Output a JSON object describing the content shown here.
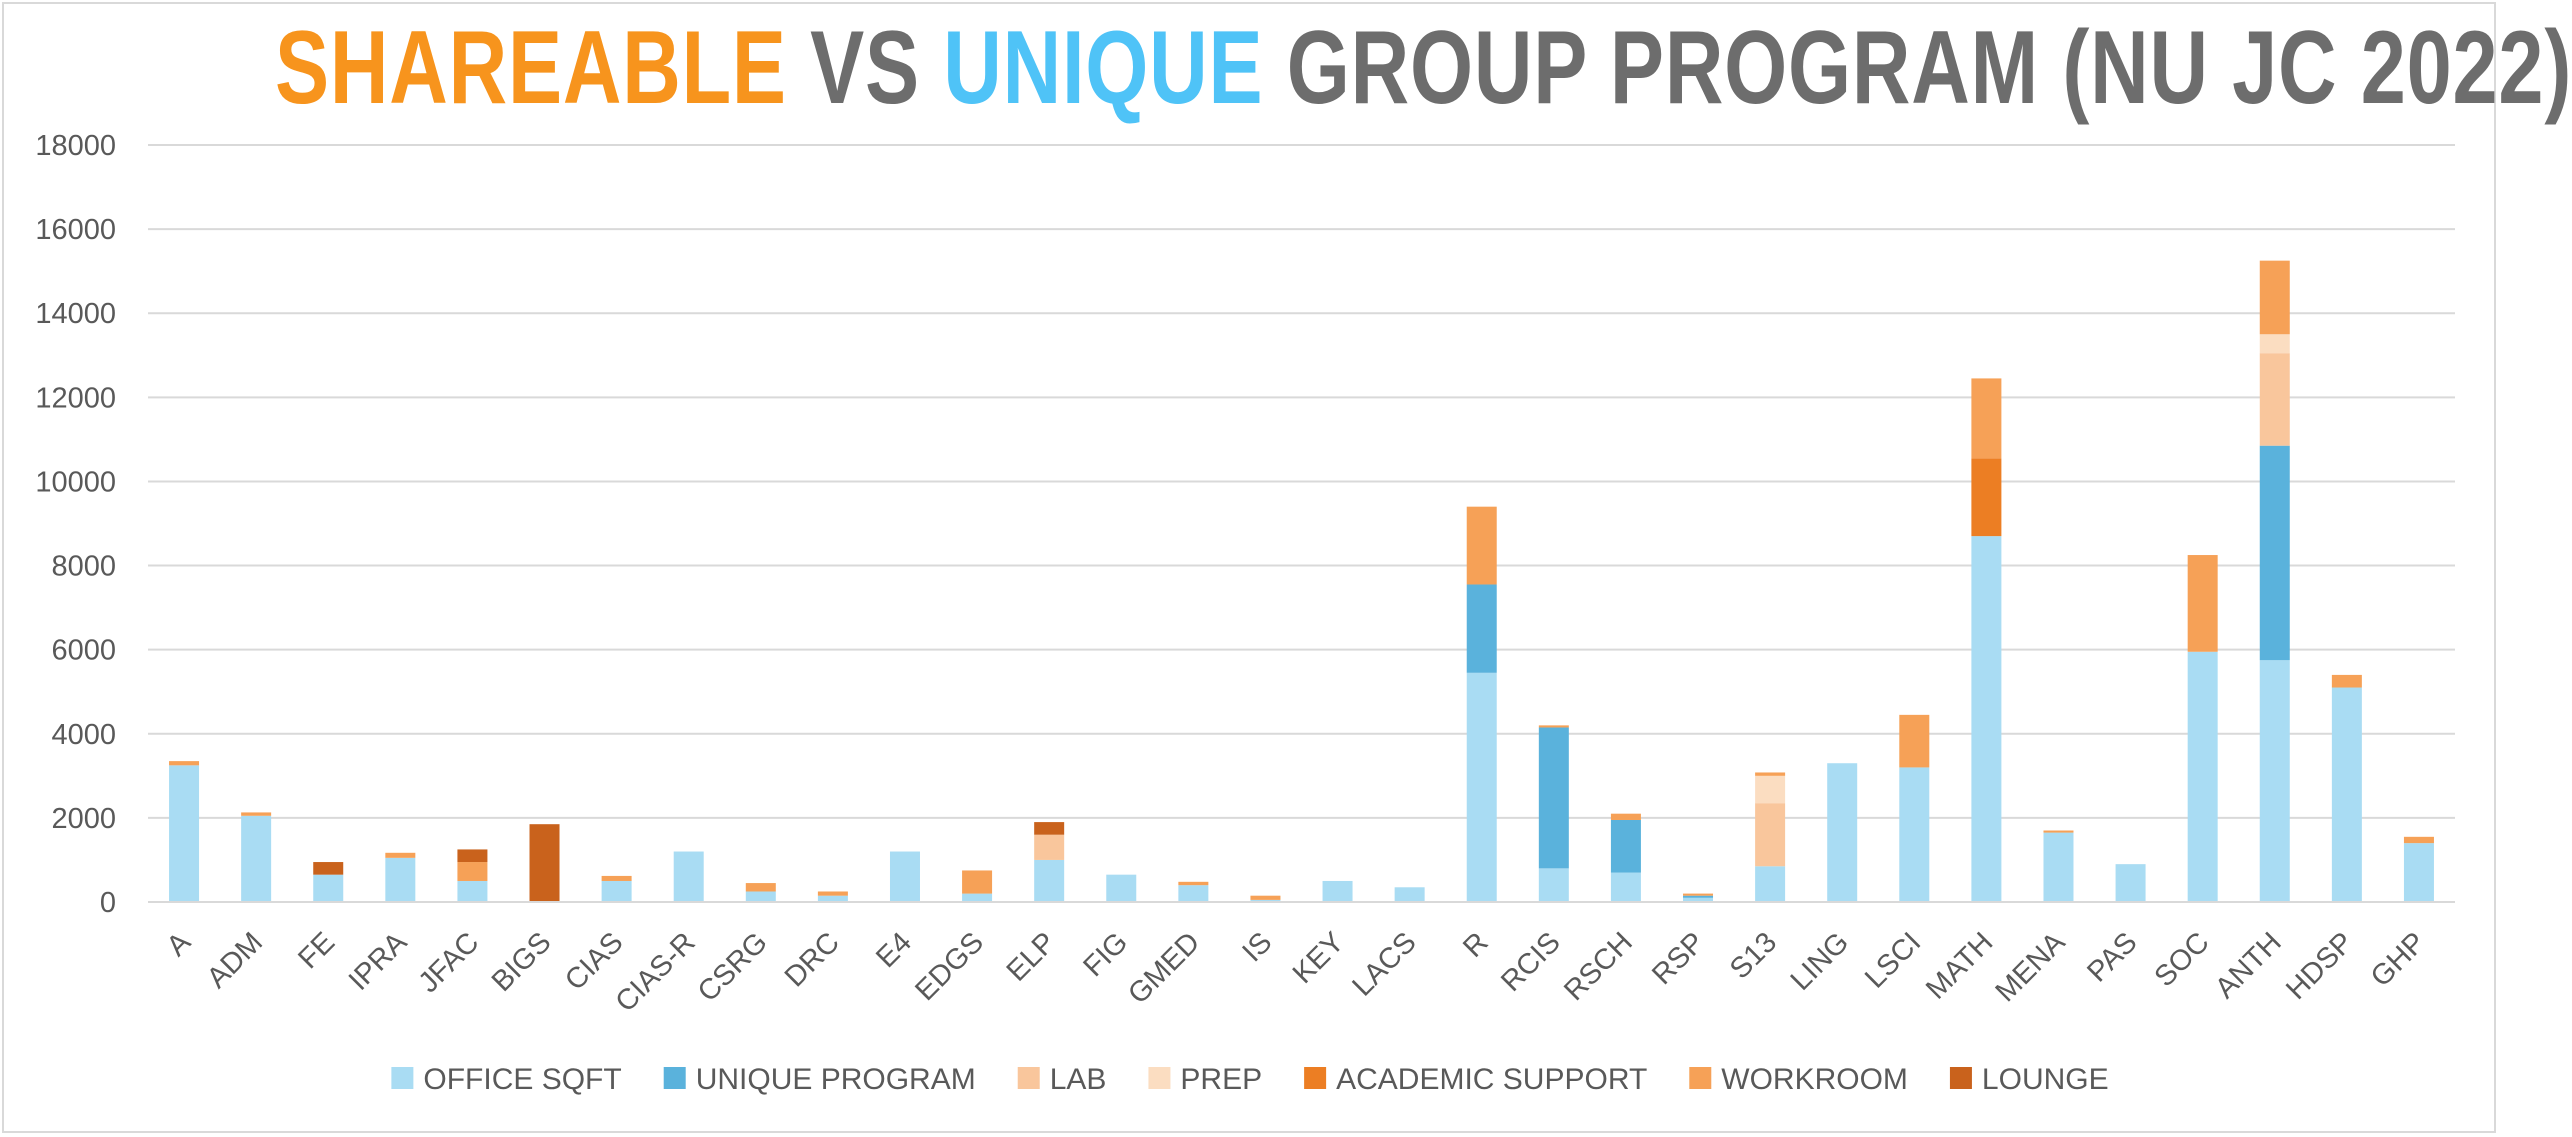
{
  "title": {
    "part1": "SHAREABLE",
    "part2": " VS ",
    "part3": "UNIQUE",
    "part4": " GROUP PROGRAM (NU JC 2022)",
    "color_shareable": "#F7941D",
    "color_unique": "#4FC3F7",
    "color_rest": "#6d6d6d"
  },
  "chart_data": {
    "type": "bar",
    "stacked": true,
    "title": "SHAREABLE VS UNIQUE GROUP PROGRAM (NU JC 2022)",
    "xlabel": "",
    "ylabel": "",
    "ylim": [
      0,
      18000
    ],
    "y_ticks": [
      0,
      2000,
      4000,
      6000,
      8000,
      10000,
      12000,
      14000,
      16000,
      18000
    ],
    "grid": true,
    "legend_position": "bottom",
    "categories": [
      "A",
      "ADM",
      "FE",
      "IPRA",
      "JFAC",
      "BIGS",
      "CIAS",
      "CIAS-R",
      "CSRG",
      "DRC",
      "E4",
      "EDGS",
      "ELP",
      "FIG",
      "GMED",
      "IS",
      "KEY",
      "LACS",
      "R",
      "RCIS",
      "RSCH",
      "RSP",
      "S13",
      "LING",
      "LSCI",
      "MATH",
      "MENA",
      "PAS",
      "SOC",
      "ANTH",
      "HDSP",
      "GHP"
    ],
    "series": [
      {
        "name": "OFFICE SQFT",
        "color": "#A9DCF3",
        "values": [
          3250,
          2050,
          650,
          1050,
          500,
          0,
          500,
          1200,
          250,
          150,
          1200,
          200,
          1000,
          650,
          400,
          50,
          500,
          350,
          5450,
          800,
          700,
          100,
          850,
          3300,
          3200,
          8700,
          1650,
          900,
          5950,
          5750,
          5100,
          1400
        ]
      },
      {
        "name": "UNIQUE PROGRAM",
        "color": "#5AB2DC",
        "values": [
          0,
          0,
          0,
          0,
          0,
          0,
          0,
          0,
          0,
          0,
          0,
          0,
          0,
          0,
          0,
          0,
          0,
          0,
          2100,
          3350,
          1250,
          50,
          0,
          0,
          0,
          0,
          0,
          0,
          0,
          5100,
          0,
          0
        ]
      },
      {
        "name": "LAB",
        "color": "#F9C69C",
        "values": [
          0,
          0,
          0,
          0,
          0,
          0,
          0,
          0,
          0,
          0,
          0,
          0,
          600,
          0,
          0,
          0,
          0,
          0,
          0,
          0,
          0,
          0,
          1500,
          0,
          0,
          0,
          0,
          0,
          0,
          2200,
          0,
          0
        ]
      },
      {
        "name": "PREP",
        "color": "#FBDDC1",
        "values": [
          0,
          0,
          0,
          0,
          0,
          0,
          0,
          0,
          0,
          0,
          0,
          0,
          0,
          0,
          0,
          0,
          0,
          0,
          0,
          0,
          0,
          0,
          650,
          0,
          0,
          0,
          0,
          0,
          0,
          450,
          0,
          0
        ]
      },
      {
        "name": "ACADEMIC SUPPORT",
        "color": "#EC7E23",
        "values": [
          0,
          0,
          0,
          0,
          0,
          0,
          0,
          0,
          0,
          0,
          0,
          0,
          0,
          0,
          0,
          0,
          0,
          0,
          0,
          0,
          0,
          0,
          0,
          0,
          0,
          1850,
          0,
          0,
          0,
          0,
          0,
          0
        ]
      },
      {
        "name": "WORKROOM",
        "color": "#F6A157",
        "values": [
          100,
          80,
          0,
          120,
          450,
          0,
          120,
          0,
          200,
          100,
          0,
          550,
          0,
          0,
          80,
          100,
          0,
          0,
          1850,
          50,
          150,
          50,
          80,
          0,
          1250,
          1900,
          50,
          0,
          2300,
          1750,
          300,
          150
        ]
      },
      {
        "name": "LOUNGE",
        "color": "#C9621C",
        "values": [
          0,
          0,
          300,
          0,
          300,
          1850,
          0,
          0,
          0,
          0,
          0,
          0,
          300,
          0,
          0,
          0,
          0,
          0,
          0,
          0,
          0,
          0,
          0,
          0,
          0,
          0,
          0,
          0,
          0,
          0,
          0,
          0
        ]
      }
    ]
  }
}
